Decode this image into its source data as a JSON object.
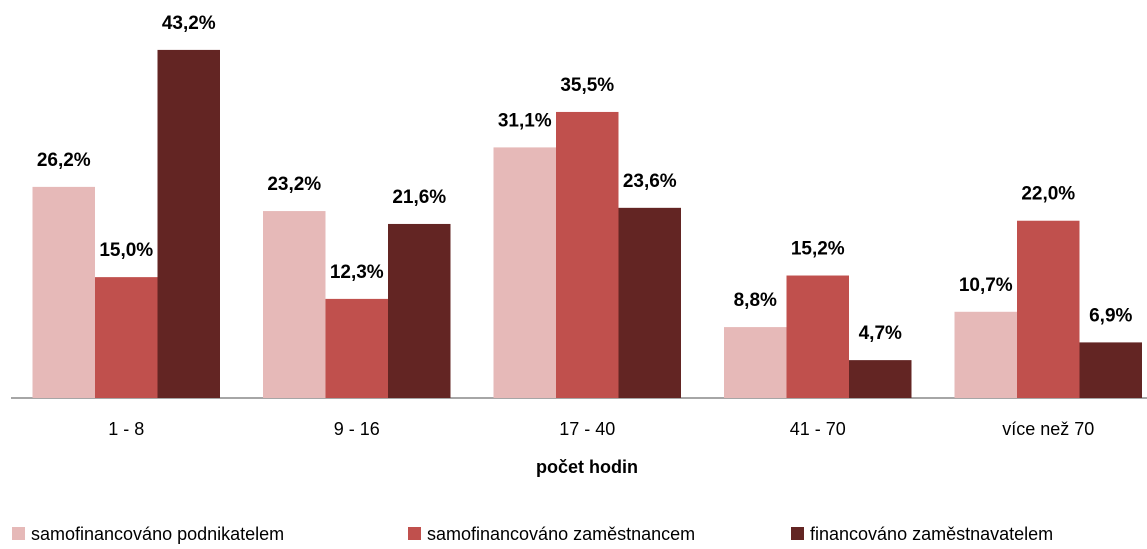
{
  "chart_data": {
    "type": "bar",
    "x_label": "počet hodin",
    "categories": [
      "1 - 8",
      "9 - 16",
      "17 - 40",
      "41 - 70",
      "více než 70"
    ],
    "ylim": [
      0,
      45
    ],
    "series": [
      {
        "name": "samofinancováno podnikatelem",
        "color": "#e6b9b8",
        "values": [
          26.2,
          23.2,
          31.1,
          8.8,
          10.7
        ],
        "value_labels": [
          "26,2%",
          "23,2%",
          "31,1%",
          "8,8%",
          "10,7%"
        ]
      },
      {
        "name": "samofinancováno zaměstnancem",
        "color": "#c0504d",
        "values": [
          15.0,
          12.3,
          35.5,
          15.2,
          22.0
        ],
        "value_labels": [
          "15,0%",
          "12,3%",
          "35,5%",
          "15,2%",
          "22,0%"
        ]
      },
      {
        "name": "financováno zaměstnavatelem",
        "color": "#632523",
        "values": [
          43.2,
          21.6,
          23.6,
          4.7,
          6.9
        ],
        "value_labels": [
          "43,2%",
          "21,6%",
          "23,6%",
          "4,7%",
          "6,9%"
        ]
      }
    ]
  }
}
